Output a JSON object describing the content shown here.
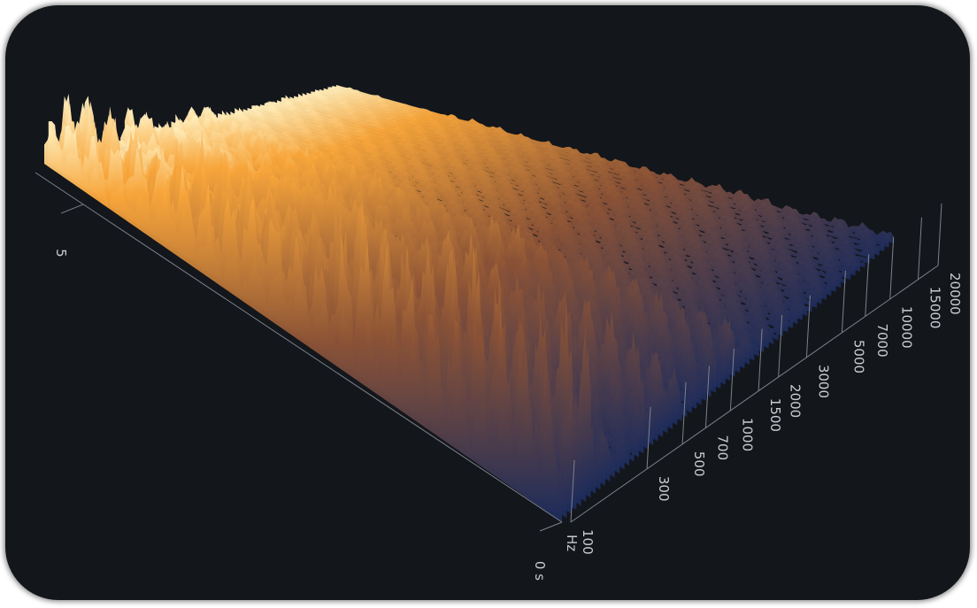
{
  "chart_data": {
    "type": "surface",
    "time_ticks": [
      {
        "value": 0,
        "label": "0 s"
      },
      5
    ],
    "tlim": [
      0,
      5.5
    ],
    "frequency_unit": "Hz",
    "frequency_ticks": [
      100,
      300,
      500,
      700,
      1000,
      1500,
      2000,
      3000,
      5000,
      7000,
      10000,
      15000,
      20000
    ],
    "flim": [
      100,
      20000
    ],
    "log_scale": true
  }
}
